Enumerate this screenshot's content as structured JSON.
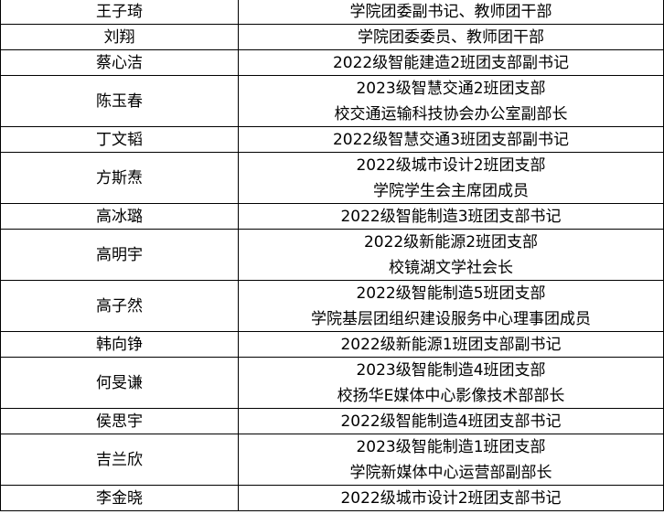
{
  "table": {
    "rows": [
      {
        "name": "王子琦",
        "roles": [
          "学院团委副书记、教师团干部"
        ]
      },
      {
        "name": "刘翔",
        "roles": [
          "学院团委委员、教师团干部"
        ]
      },
      {
        "name": "蔡心洁",
        "roles": [
          "2022级智能建造2班团支部副书记"
        ]
      },
      {
        "name": "陈玉春",
        "roles": [
          "2023级智慧交通2班团支部",
          "校交通运输科技协会办公室副部长"
        ]
      },
      {
        "name": "丁文韬",
        "roles": [
          "2022级智慧交通3班团支部副书记"
        ]
      },
      {
        "name": "方斯焘",
        "roles": [
          "2022级城市设计2班团支部",
          "学院学生会主席团成员"
        ]
      },
      {
        "name": "高冰璐",
        "roles": [
          "2022级智能制造3班团支部书记"
        ]
      },
      {
        "name": "高明宇",
        "roles": [
          "2022级新能源2班团支部",
          "校镜湖文学社会长"
        ]
      },
      {
        "name": "高子然",
        "roles": [
          "2022级智能制造5班团支部",
          "学院基层团组织建设服务中心理事团成员"
        ]
      },
      {
        "name": "韩向铮",
        "roles": [
          "2022级新能源1班团支部副书记"
        ]
      },
      {
        "name": "何旻谦",
        "roles": [
          "2023级智能制造4班团支部",
          "校扬华E媒体中心影像技术部部长"
        ]
      },
      {
        "name": "侯思宇",
        "roles": [
          "2022级智能制造4班团支部书记"
        ]
      },
      {
        "name": "吉兰欣",
        "roles": [
          "2023级智能制造1班团支部",
          "学院新媒体中心运营部副部长"
        ]
      },
      {
        "name": "李金晓",
        "roles": [
          "2022级城市设计2班团支部书记"
        ]
      }
    ]
  }
}
